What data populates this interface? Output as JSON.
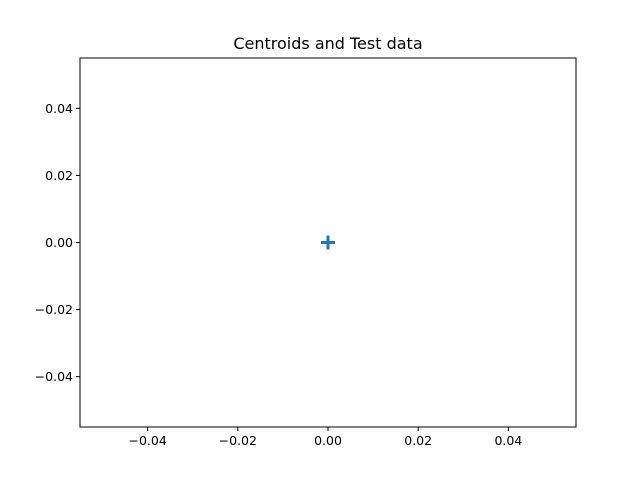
{
  "chart_data": {
    "type": "scatter",
    "title": "Centroids and Test data",
    "xlabel": "",
    "ylabel": "",
    "xlim": [
      -0.055,
      0.055
    ],
    "ylim": [
      -0.055,
      0.055
    ],
    "x_ticks": [
      -0.04,
      -0.02,
      0.0,
      0.02,
      0.04
    ],
    "x_tick_labels": [
      "−0.04",
      "−0.02",
      "0.00",
      "0.02",
      "0.04"
    ],
    "y_ticks": [
      -0.04,
      -0.02,
      0.0,
      0.02,
      0.04
    ],
    "y_tick_labels": [
      "−0.04",
      "−0.02",
      "0.00",
      "0.02",
      "0.04"
    ],
    "grid": false,
    "legend": "none",
    "series": [
      {
        "marker": "plus",
        "color": "#1f77b4",
        "points": [
          {
            "x": 0.0,
            "y": 0.0
          }
        ]
      }
    ]
  }
}
